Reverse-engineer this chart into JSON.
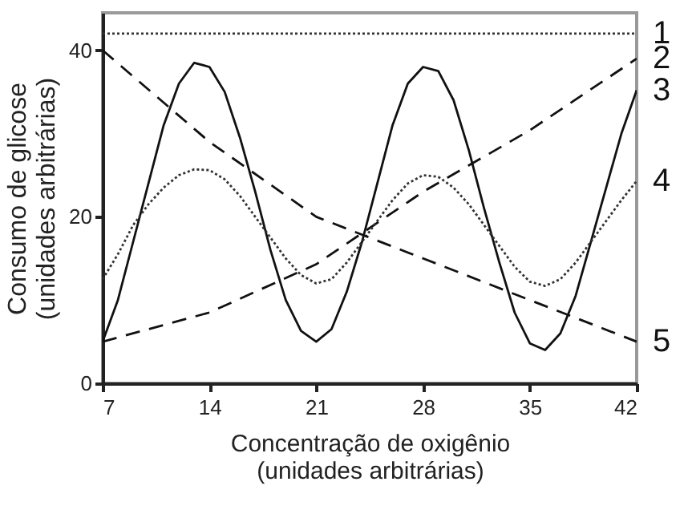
{
  "chart_data": {
    "type": "line",
    "xlabel": "Concentração de oxigênio (unidades arbitrárias)",
    "ylabel": "Consumo de glicose (unidades arbitrárias)",
    "xlim": [
      7,
      42
    ],
    "xticks": [
      7,
      14,
      21,
      28,
      35,
      42
    ],
    "ylim": [
      0,
      44.5
    ],
    "yticks": [
      0,
      20,
      40
    ],
    "grid": false,
    "legend": false,
    "marker": "none",
    "series": [
      {
        "name": "1",
        "color": "#333333",
        "line_style": "dotted",
        "x": [
          7,
          42
        ],
        "values": [
          42,
          42
        ]
      },
      {
        "name": "2",
        "color": "#111111",
        "line_style": "dashed",
        "x": [
          7,
          14,
          21,
          28,
          35,
          42
        ],
        "values": [
          5,
          8.5,
          14.3,
          23,
          30.4,
          39
        ]
      },
      {
        "name": "3",
        "color": "#111111",
        "line_style": "solid",
        "x": [
          7,
          8,
          9,
          10,
          11,
          12,
          13,
          14,
          15,
          16,
          17,
          18,
          19,
          20,
          21,
          22,
          23,
          24,
          25,
          26,
          27,
          28,
          29,
          30,
          31,
          32,
          33,
          34,
          35,
          36,
          37,
          38,
          39,
          40,
          41,
          42
        ],
        "values": [
          5,
          10,
          17,
          24,
          31,
          36,
          38.5,
          38,
          35,
          29.5,
          23,
          16,
          10,
          6.3,
          5,
          6.5,
          11,
          17,
          24,
          31,
          36,
          38,
          37.5,
          34,
          28,
          21,
          14.5,
          8.5,
          4.8,
          4,
          6,
          10.5,
          17,
          23.5,
          30,
          35.2
        ]
      },
      {
        "name": "4",
        "color": "#333333",
        "line_style": "dotted",
        "x": [
          7,
          8,
          9,
          10,
          11,
          12,
          13,
          14,
          15,
          16,
          17,
          18,
          19,
          20,
          21,
          22,
          23,
          24,
          25,
          26,
          27,
          28,
          29,
          30,
          31,
          32,
          33,
          34,
          35,
          36,
          37,
          38,
          39,
          40,
          41,
          42
        ],
        "values": [
          12.5,
          15.5,
          19,
          21.5,
          23.5,
          25,
          25.7,
          25.6,
          24.5,
          22.5,
          20,
          17.5,
          15,
          13,
          12,
          12.5,
          14.5,
          17,
          19.5,
          22,
          24,
          25,
          24.8,
          23.5,
          21.5,
          19,
          16.5,
          14,
          12.2,
          11.7,
          12.5,
          14.5,
          17,
          19.5,
          22,
          24.3
        ]
      },
      {
        "name": "5",
        "color": "#111111",
        "line_style": "dashed",
        "x": [
          7,
          14,
          21,
          24.5,
          28,
          35,
          42
        ],
        "values": [
          40,
          29,
          20,
          17.5,
          15,
          10,
          5
        ]
      }
    ]
  }
}
